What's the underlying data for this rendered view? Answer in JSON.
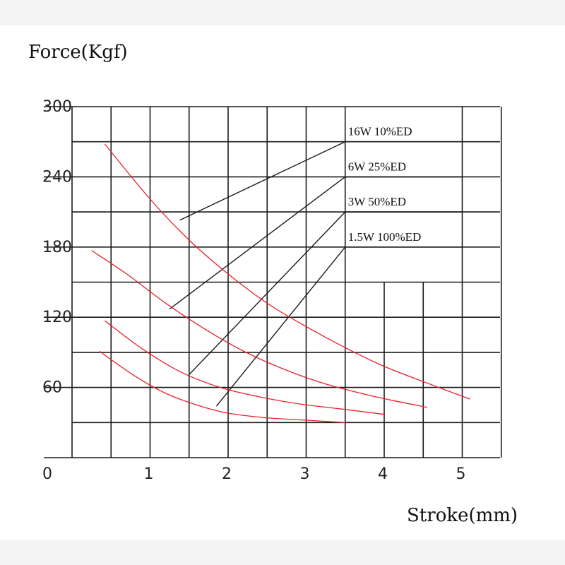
{
  "chart_data": {
    "type": "line",
    "ylabel": "Force(Kgf)",
    "xlabel": "Stroke(mm)",
    "xlim": [
      0,
      5.5
    ],
    "ylim": [
      0,
      300
    ],
    "x_ticks": [
      {
        "value": 0,
        "label": "0"
      },
      {
        "value": 1,
        "label": "1"
      },
      {
        "value": 2,
        "label": "2"
      },
      {
        "value": 3,
        "label": "3"
      },
      {
        "value": 4,
        "label": "4"
      },
      {
        "value": 5,
        "label": "5"
      }
    ],
    "y_ticks": [
      {
        "value": 60,
        "label": "60"
      },
      {
        "value": 120,
        "label": "120"
      },
      {
        "value": 180,
        "label": "180"
      },
      {
        "value": 240,
        "label": "240"
      },
      {
        "value": 300,
        "label": "300"
      }
    ],
    "grid": true,
    "line_color": "#e8202a",
    "series": [
      {
        "name": "16W  10%ED",
        "points": [
          [
            0.42,
            268
          ],
          [
            1.0,
            221
          ],
          [
            1.5,
            186
          ],
          [
            2.0,
            157
          ],
          [
            2.5,
            132
          ],
          [
            3.0,
            112
          ],
          [
            3.5,
            94
          ],
          [
            4.0,
            78
          ],
          [
            4.5,
            65
          ],
          [
            5.1,
            50
          ]
        ]
      },
      {
        "name": "6W  25%ED",
        "points": [
          [
            0.25,
            177
          ],
          [
            0.7,
            157
          ],
          [
            1.2,
            132
          ],
          [
            1.7,
            110
          ],
          [
            2.2,
            91
          ],
          [
            2.7,
            76
          ],
          [
            3.2,
            64
          ],
          [
            3.7,
            55
          ],
          [
            4.1,
            49
          ],
          [
            4.55,
            43
          ]
        ]
      },
      {
        "name": "3W   50%ED",
        "points": [
          [
            0.42,
            117
          ],
          [
            0.9,
            93
          ],
          [
            1.4,
            73
          ],
          [
            1.9,
            60
          ],
          [
            2.4,
            52
          ],
          [
            2.9,
            46
          ],
          [
            3.4,
            42
          ],
          [
            4.0,
            37
          ]
        ]
      },
      {
        "name": "1.5W  100%ED",
        "points": [
          [
            0.35,
            91
          ],
          [
            0.8,
            70
          ],
          [
            1.2,
            55
          ],
          [
            1.6,
            45
          ],
          [
            2.0,
            38
          ],
          [
            2.5,
            34
          ],
          [
            3.0,
            32
          ],
          [
            3.5,
            30
          ]
        ]
      }
    ],
    "legend_callouts": [
      {
        "label": "16W  10%ED",
        "anchor": [
          1.38,
          203
        ]
      },
      {
        "label": "6W  25%ED",
        "anchor": [
          1.25,
          127
        ]
      },
      {
        "label": "3W   50%ED",
        "anchor": [
          1.5,
          71
        ]
      },
      {
        "label": "1.5W  100%ED",
        "anchor": [
          1.85,
          44
        ]
      }
    ]
  }
}
